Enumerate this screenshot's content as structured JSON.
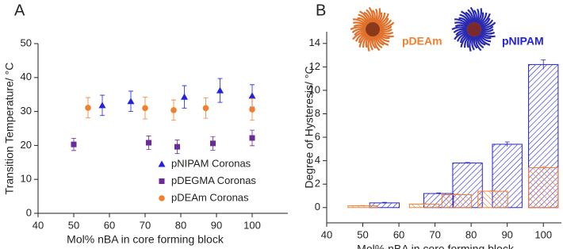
{
  "chart_data": [
    {
      "type": "scatter",
      "panel_label": "A",
      "x_label": "Mol% nBA in core forming block",
      "y_label": "Transition Temperature/ °C",
      "xlim": [
        40,
        110
      ],
      "xticks": [
        40,
        50,
        60,
        70,
        80,
        90,
        100
      ],
      "ylim": [
        0,
        50
      ],
      "yticks": [
        0,
        10,
        20,
        30,
        40,
        50
      ],
      "series": [
        {
          "name": "pNIPAM Coronas",
          "color": "#2222dd",
          "marker": "triangle",
          "x": [
            58,
            66,
            81,
            91,
            100
          ],
          "values": [
            31.8,
            33,
            34.3,
            36.2,
            34.6
          ],
          "errors": [
            3,
            3,
            3.3,
            3.5,
            3.3
          ]
        },
        {
          "name": "pDEGMA Coronas",
          "color": "#6a2a9a",
          "marker": "square",
          "x": [
            50,
            71,
            79,
            89,
            100
          ],
          "values": [
            20.3,
            20.8,
            19.6,
            20.6,
            22.2
          ],
          "errors": [
            1.8,
            2,
            2,
            2,
            2.3
          ]
        },
        {
          "name": "pDEAm Coronas",
          "color": "#f08030",
          "marker": "circle",
          "x": [
            54,
            70,
            78,
            87,
            100
          ],
          "values": [
            31.1,
            31,
            30.4,
            31,
            30.6
          ],
          "errors": [
            3,
            3.2,
            3,
            3,
            3.2
          ]
        }
      ]
    },
    {
      "type": "bar",
      "panel_label": "B",
      "x_label": "Mol% nBA in core forming block",
      "y_label": "Degree of Hysteresis/ °C",
      "xlim": [
        40,
        105
      ],
      "xticks": [
        40,
        50,
        60,
        70,
        80,
        90,
        100
      ],
      "ylim": [
        -1.3,
        15
      ],
      "yticks": [
        0,
        2,
        4,
        6,
        8,
        10,
        12,
        14
      ],
      "series": [
        {
          "name": "pNIPAM",
          "color": "#2222dd",
          "x": [
            56,
            71,
            79,
            90,
            100
          ],
          "values": [
            0.4,
            1.2,
            3.8,
            5.4,
            12.2
          ],
          "errors": [
            0.05,
            0.05,
            0.05,
            0.2,
            0.4
          ]
        },
        {
          "name": "pDEAm",
          "color": "#f08030",
          "x": [
            50,
            67,
            76,
            86,
            100
          ],
          "values": [
            0.15,
            0.3,
            1.1,
            1.4,
            3.4
          ],
          "errors": [
            0.03,
            0.03,
            0.05,
            0.05,
            0.1
          ]
        }
      ]
    }
  ]
}
